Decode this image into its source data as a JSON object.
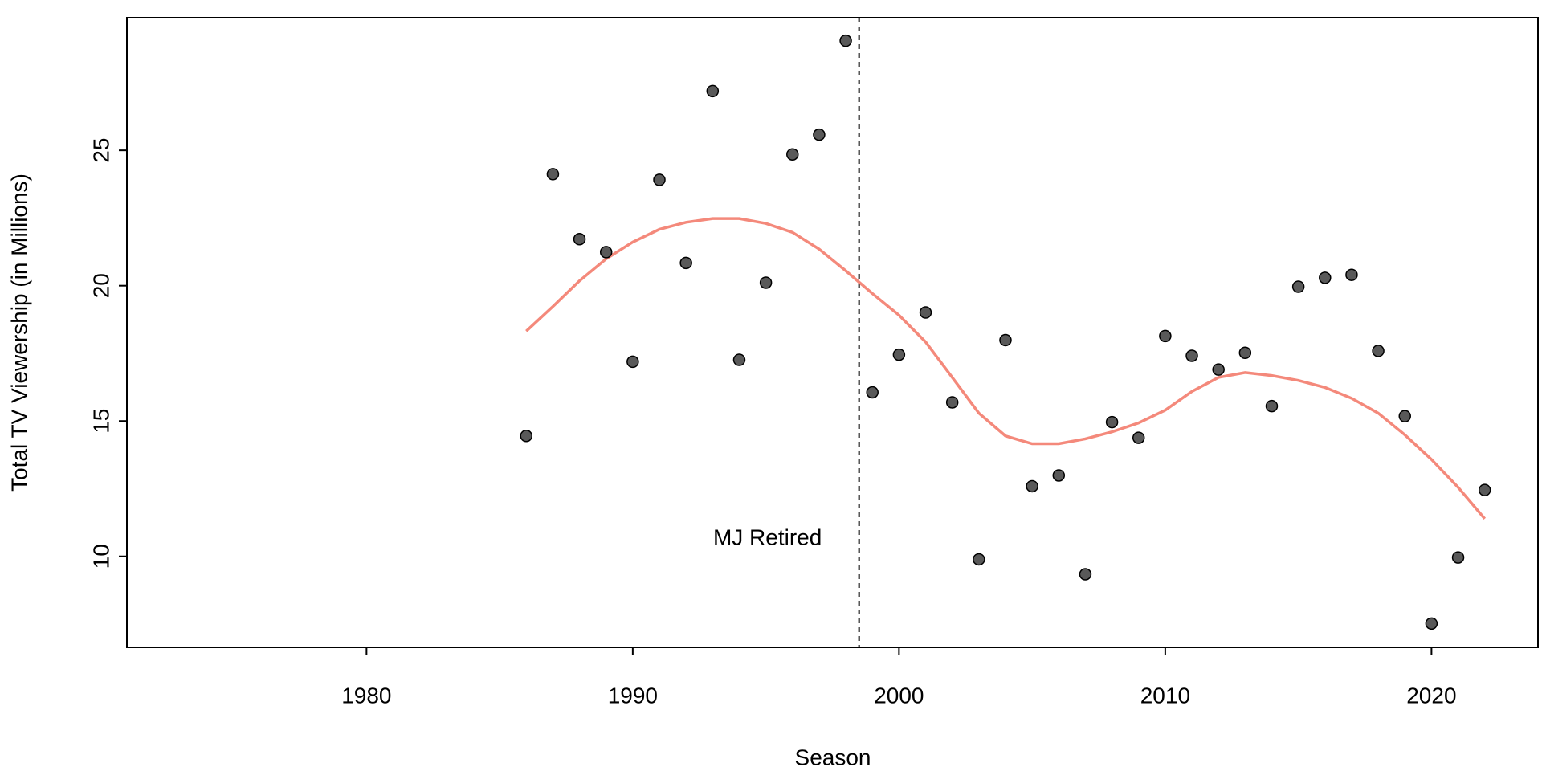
{
  "chart_data": {
    "type": "scatter",
    "xlabel": "Season",
    "ylabel": "Total TV Viewership (in Millions)",
    "x": [
      1986,
      1987,
      1988,
      1989,
      1990,
      1991,
      1992,
      1993,
      1994,
      1995,
      1996,
      1997,
      1998,
      1999,
      2000,
      2001,
      2002,
      2003,
      2004,
      2005,
      2006,
      2007,
      2008,
      2009,
      2010,
      2011,
      2012,
      2013,
      2014,
      2015,
      2016,
      2017,
      2018,
      2019,
      2020,
      2021,
      2022
    ],
    "values": [
      14.45,
      24.12,
      21.72,
      21.24,
      17.19,
      23.91,
      20.84,
      27.19,
      17.26,
      20.11,
      24.85,
      25.58,
      29.05,
      16.06,
      17.45,
      19.01,
      15.69,
      9.89,
      17.99,
      12.59,
      12.99,
      9.34,
      14.96,
      14.38,
      18.14,
      17.41,
      16.9,
      17.52,
      15.55,
      19.96,
      20.29,
      20.4,
      17.59,
      15.18,
      7.52,
      9.96,
      12.45
    ],
    "color": "#595959",
    "smooth": {
      "color": "#f4897b",
      "values": [
        18.32,
        19.23,
        20.18,
        20.99,
        21.61,
        22.08,
        22.34,
        22.48,
        22.48,
        22.3,
        21.97,
        21.35,
        20.55,
        19.71,
        18.91,
        17.92,
        16.61,
        15.29,
        14.45,
        14.16,
        14.16,
        14.34,
        14.6,
        14.93,
        15.4,
        16.09,
        16.61,
        16.79,
        16.68,
        16.5,
        16.24,
        15.84,
        15.29,
        14.49,
        13.58,
        12.55,
        11.39
      ]
    },
    "vline": 1998.5,
    "annotation": "MJ Retired",
    "xlim": [
      1971,
      2024
    ],
    "ylim": [
      6.64,
      29.9
    ],
    "xticks": [
      1980,
      1990,
      2000,
      2010,
      2020
    ],
    "yticks": [
      10,
      15,
      20,
      25
    ]
  }
}
